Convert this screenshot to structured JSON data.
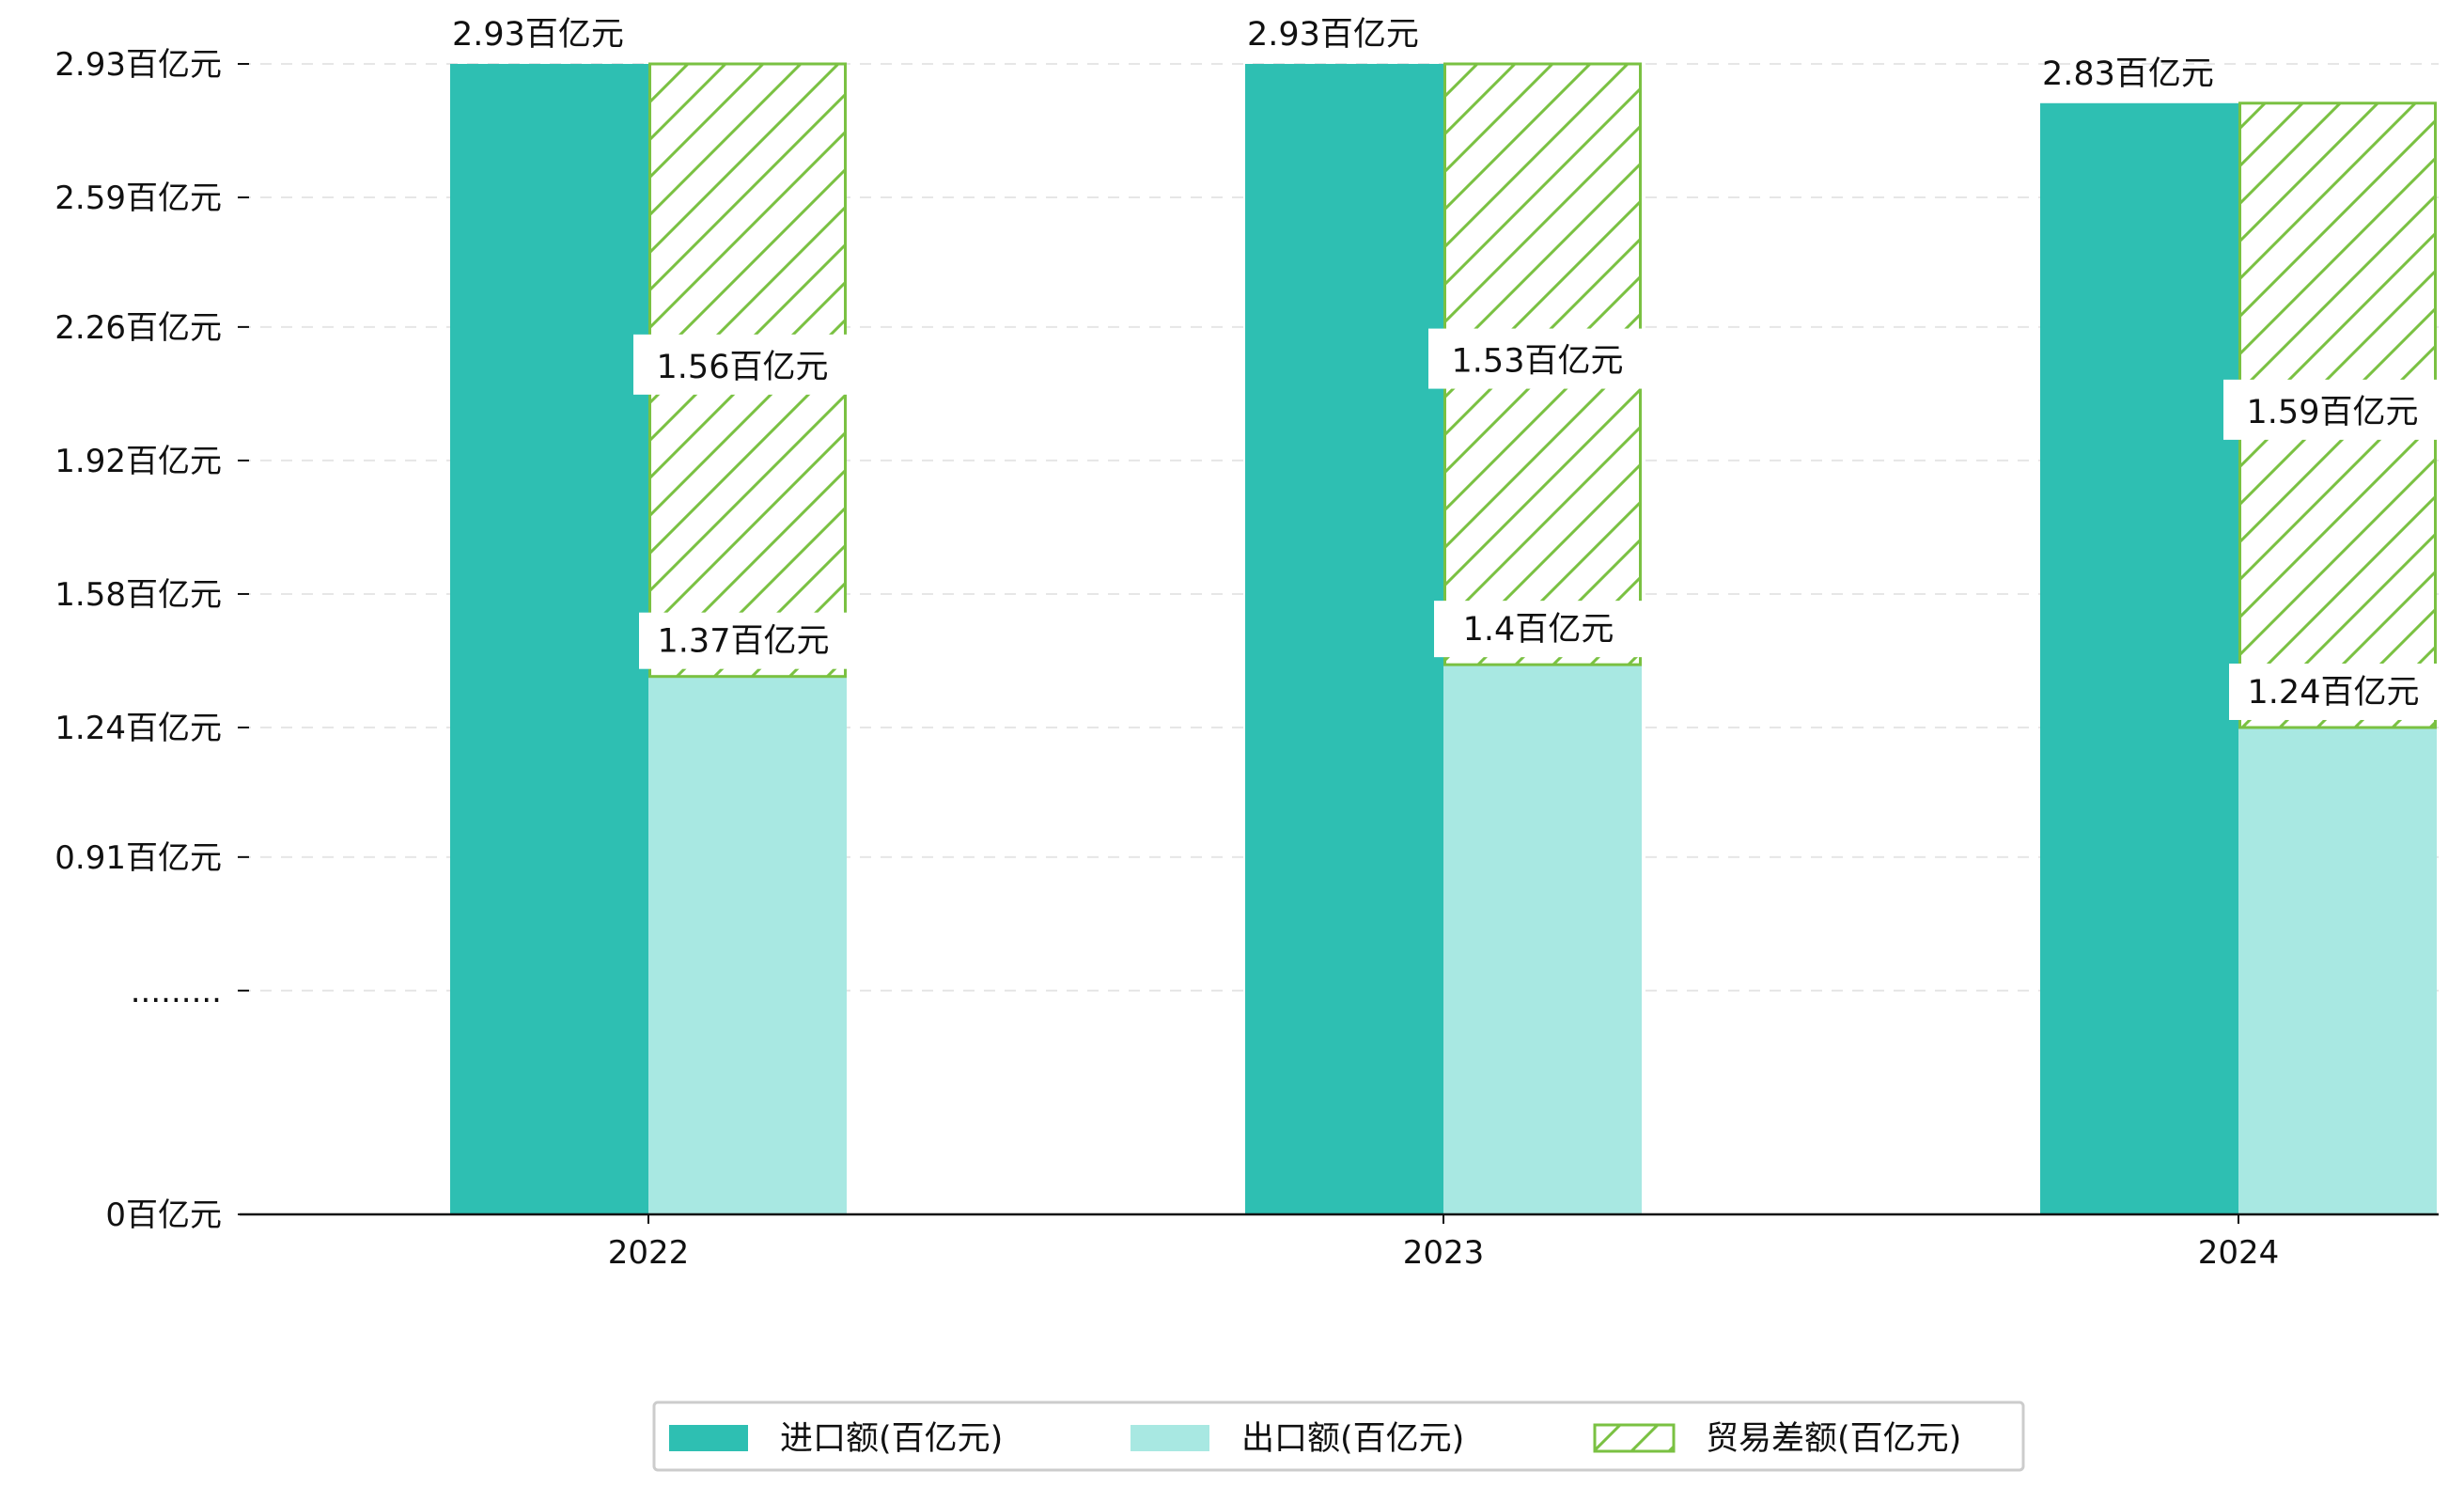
{
  "chart_data": {
    "type": "bar",
    "categories": [
      "2022",
      "2023",
      "2024"
    ],
    "series": [
      {
        "name": "进口额(百亿元)",
        "values": [
          2.93,
          2.93,
          2.83
        ],
        "labels": [
          "2.93百亿元",
          "2.93百亿元",
          "2.83百亿元"
        ],
        "color": "#2ebfb2"
      },
      {
        "name": "出口额(百亿元)",
        "values": [
          1.37,
          1.4,
          1.24
        ],
        "labels": [
          "1.37百亿元",
          "1.4百亿元",
          "1.24百亿元"
        ],
        "color": "#a8e8e2"
      },
      {
        "name": "贸易差额(百亿元)",
        "values": [
          1.56,
          1.53,
          1.59
        ],
        "labels": [
          "1.56百亿元",
          "1.53百亿元",
          "1.59百亿元"
        ],
        "color": "#7ac142",
        "pattern": "hatch",
        "stacked_on": "出口额(百亿元)"
      }
    ],
    "y_ticks": [
      {
        "value": 0,
        "label": "0百亿元"
      },
      {
        "value": 0.57,
        "label": "........."
      },
      {
        "value": 0.91,
        "label": "0.91百亿元"
      },
      {
        "value": 1.24,
        "label": "1.24百亿元"
      },
      {
        "value": 1.58,
        "label": "1.58百亿元"
      },
      {
        "value": 1.92,
        "label": "1.92百亿元"
      },
      {
        "value": 2.26,
        "label": "2.26百亿元"
      },
      {
        "value": 2.59,
        "label": "2.59百亿元"
      },
      {
        "value": 2.93,
        "label": "2.93百亿元"
      }
    ],
    "ylim": [
      0,
      2.93
    ],
    "y_axis_break": true,
    "grid": "horizontal dashed",
    "legend_position": "bottom-center"
  }
}
